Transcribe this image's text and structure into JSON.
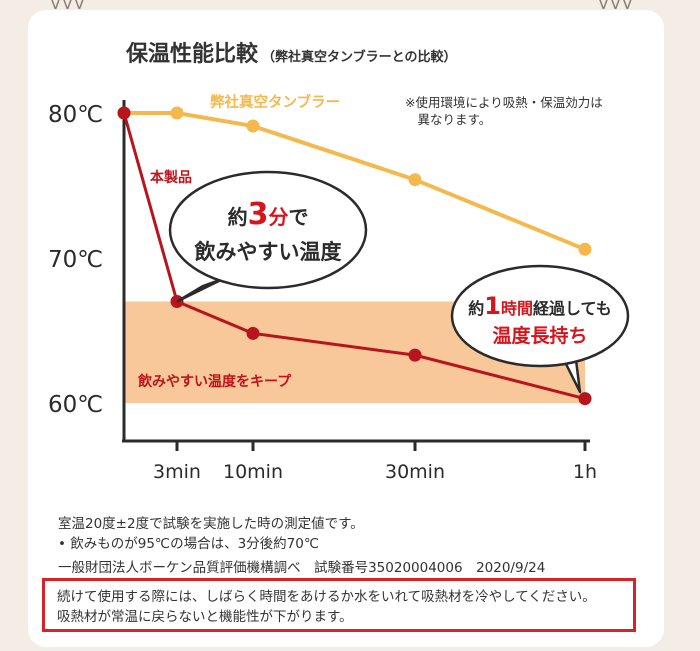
{
  "decorations": {
    "left": "ᐯᐯᐯ",
    "right": "ᐯᐯᐯ"
  },
  "header": {
    "title": "保温性能比較",
    "subtitle": "（弊社真空タンブラーとの比較）"
  },
  "note": "※使用環境により吸熱・保温効力は\n　異なります。",
  "chart_data": {
    "type": "line",
    "x": [
      "0",
      "3min",
      "10min",
      "30min",
      "1h"
    ],
    "x_tick_labels": [
      "3min",
      "10min",
      "30min",
      "1h"
    ],
    "y_tick_labels": [
      "80℃",
      "70℃",
      "60℃"
    ],
    "ylim": [
      57,
      80
    ],
    "series": [
      {
        "name": "弊社真空タンブラー",
        "color": "#f5b84c",
        "values": [
          80,
          80,
          79.1,
          75.4,
          70.6
        ]
      },
      {
        "name": "本製品",
        "color": "#b8141b",
        "values": [
          80,
          67.0,
          64.8,
          63.3,
          60.3
        ]
      }
    ],
    "band": {
      "label": "飲みやすい温度をキープ",
      "from": 60,
      "to": 67,
      "color": "#f8c79a"
    },
    "callouts": [
      {
        "pre": "約",
        "num": "3",
        "unit": "分",
        "post": "で",
        "line2": "飲みやすい温度"
      },
      {
        "pre": "約",
        "num": "1",
        "unit": "時間",
        "post": "経過しても",
        "line2": "温度長持ち"
      }
    ]
  },
  "footer": {
    "line1": "室温20度±2度で試験を実施した時の測定値です。",
    "line2": "•  飲みものが95℃の場合は、3分後約70℃",
    "line3": "一般財団法人ボーケン品質評価機構調べ　試験番号35020004006　2020/9/24",
    "warning1": "続けて使用する際には、しばらく時間をあけるか水をいれて吸熱材を冷やしてください。",
    "warning2": "吸熱材が常温に戻らないと機能性が下がります。"
  }
}
